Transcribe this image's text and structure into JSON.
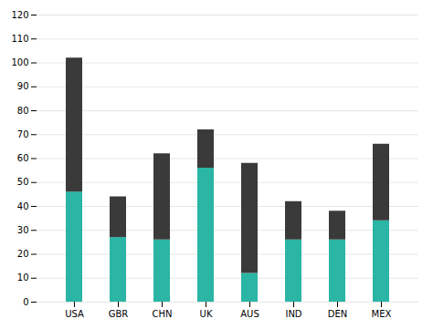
{
  "chart_data": {
    "type": "bar",
    "stacked": true,
    "categories": [
      "USA",
      "GBR",
      "CHN",
      "UK",
      "AUS",
      "IND",
      "DEN",
      "MEX"
    ],
    "series": [
      {
        "color": "#2ab5a5",
        "values": [
          46,
          27,
          26,
          56,
          12,
          26,
          26,
          34
        ]
      },
      {
        "color": "#3a3a3a",
        "values": [
          56,
          17,
          36,
          16,
          46,
          16,
          12,
          32
        ]
      }
    ],
    "ylim": [
      0,
      120
    ],
    "yticks": [
      0,
      10,
      20,
      30,
      40,
      50,
      60,
      70,
      80,
      90,
      100,
      110,
      120
    ],
    "grid": true
  }
}
